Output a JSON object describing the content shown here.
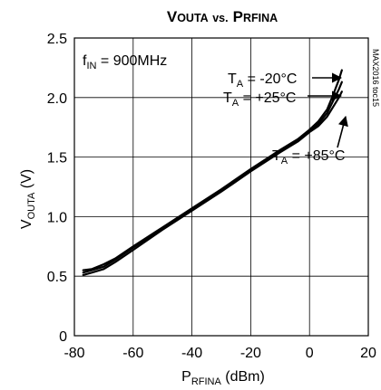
{
  "chart_data": {
    "type": "line",
    "title": {
      "main_initial": "V",
      "main_rest": "OUTA",
      "vs": "vs.",
      "second_initial": "P",
      "second_rest": "RFINA"
    },
    "xlabel": {
      "main": "P",
      "sub": "RFINA",
      "unit": " (dBm)"
    },
    "ylabel": {
      "main": "V",
      "sub": "OUTA",
      "unit": " (V)"
    },
    "xlim": [
      -80,
      20
    ],
    "ylim": [
      0,
      2.5
    ],
    "x_ticks": [
      -80,
      -60,
      -40,
      -20,
      0,
      20
    ],
    "y_ticks": [
      0,
      0.5,
      1.0,
      1.5,
      2.0,
      2.5
    ],
    "x_tick_labels": [
      "-80",
      "-60",
      "-40",
      "-20",
      "0",
      "20"
    ],
    "y_tick_labels": [
      "0",
      "0.5",
      "1.0",
      "1.5",
      "2.0",
      "2.5"
    ],
    "grid": true,
    "condition": {
      "main": "f",
      "sub": "IN",
      "rest": " = 900MHz"
    },
    "code_label": "MAX2016 toc15",
    "series": [
      {
        "name": "TA = -20°C",
        "label_main": "T",
        "label_sub": "A",
        "label_rest": " = -20°C",
        "x": [
          -77,
          -74,
          -70,
          -66,
          -60,
          -50,
          -40,
          -30,
          -20,
          -10,
          -4,
          0,
          3,
          6,
          8,
          10,
          11
        ],
        "y": [
          0.55,
          0.56,
          0.6,
          0.65,
          0.75,
          0.91,
          1.07,
          1.23,
          1.4,
          1.56,
          1.65,
          1.73,
          1.8,
          1.9,
          2.02,
          2.15,
          2.23
        ]
      },
      {
        "name": "TA = +25°C",
        "label_main": "T",
        "label_sub": "A",
        "label_rest": " = +25°C",
        "x": [
          -77,
          -74,
          -70,
          -66,
          -60,
          -50,
          -40,
          -30,
          -20,
          -10,
          -4,
          0,
          3,
          6,
          8,
          10,
          11
        ],
        "y": [
          0.53,
          0.55,
          0.58,
          0.64,
          0.74,
          0.9,
          1.06,
          1.22,
          1.39,
          1.55,
          1.64,
          1.72,
          1.78,
          1.87,
          1.97,
          2.07,
          2.13
        ]
      },
      {
        "name": "TA = +85°C",
        "label_main": "T",
        "label_sub": "A",
        "label_rest": " = +85°C",
        "x": [
          -77,
          -74,
          -70,
          -66,
          -60,
          -50,
          -40,
          -30,
          -20,
          -10,
          -4,
          0,
          3,
          6,
          8,
          10,
          11
        ],
        "y": [
          0.51,
          0.53,
          0.56,
          0.62,
          0.72,
          0.89,
          1.05,
          1.21,
          1.38,
          1.54,
          1.63,
          1.71,
          1.76,
          1.84,
          1.92,
          2.0,
          2.05
        ]
      }
    ]
  }
}
